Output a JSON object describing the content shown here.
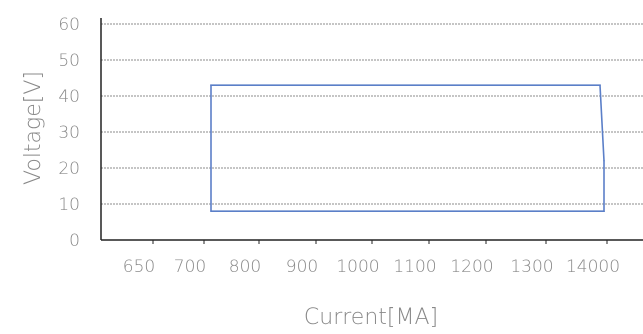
{
  "chart_data": {
    "type": "line",
    "title": "",
    "xlabel": "Current[MA]",
    "ylabel": "Voltage[V]",
    "x_ticks": [
      "650",
      "700",
      "800",
      "900",
      "1000",
      "1100",
      "1200",
      "1300",
      "14000"
    ],
    "y_ticks": [
      0,
      10,
      20,
      30,
      40,
      50,
      60
    ],
    "ylim": [
      0,
      60
    ],
    "grid": "horizontal-dashed",
    "legend": "none",
    "series": [
      {
        "points": [
          {
            "x": "700",
            "y": 8
          },
          {
            "x": "700",
            "y": 43
          },
          {
            "x": "14000",
            "y": 43
          },
          {
            "x": "14000",
            "y": 22
          },
          {
            "x": "14000",
            "y": 8
          },
          {
            "x": "700",
            "y": 8
          }
        ]
      }
    ],
    "colors": {
      "series": "#5b7fc8",
      "axis": "#222222",
      "grid": "#666666",
      "text": "#888888"
    }
  }
}
